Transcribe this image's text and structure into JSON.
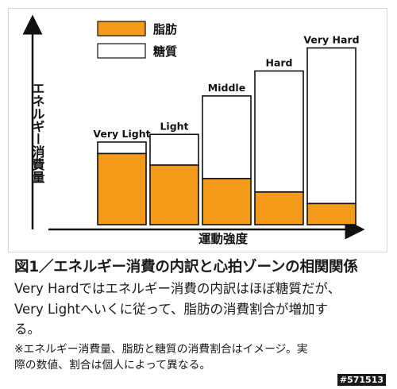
{
  "chart_data": {
    "type": "bar",
    "stacked": true,
    "categories": [
      "Very Light",
      "Light",
      "Middle",
      "Hard",
      "Very Hard"
    ],
    "series": [
      {
        "name": "脂肪",
        "values": [
          37,
          31,
          24,
          17,
          11
        ],
        "color": "#f39a1b"
      },
      {
        "name": "糖質",
        "values": [
          6,
          16,
          43,
          63,
          81
        ],
        "color": "#ffffff"
      }
    ],
    "title": "",
    "ylabel": "エネルギー消費量",
    "xlabel": "運動強度",
    "ylim": [
      0,
      100
    ],
    "grid": false,
    "legend_position": "top-left",
    "ticks_shown": false
  },
  "caption": {
    "title": "図1／エネルギー消費の内訳と心拍ゾーンの相関関係",
    "line1": "Very Hardではエネルギー消費の内訳はほぼ糖質だが、",
    "line2": "Very Lightへいくに従って、脂肪の消費割合が増加す",
    "line3": "る。",
    "note1": "※エネルギー消費量、脂肪と糖質の消費割合はイメージ。実",
    "note2": "際の数値、割合は個人によって異なる。"
  },
  "image_id": "#571513"
}
